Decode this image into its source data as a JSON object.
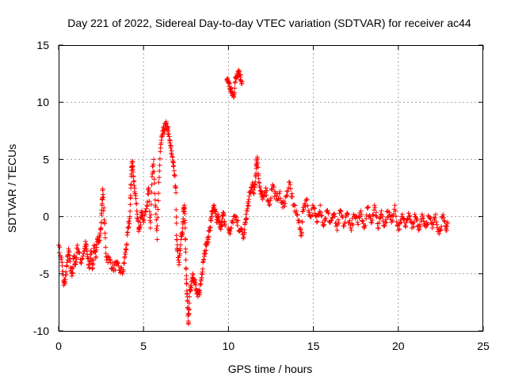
{
  "chart_data": {
    "type": "scatter",
    "title": "Day 221 of 2022, Sidereal Day-to-day VTEC variation (SDTVAR) for receiver ac44",
    "xlabel": "GPS time / hours",
    "ylabel": "SDTVAR / TECUs",
    "xlim": [
      0,
      25
    ],
    "ylim": [
      -10,
      15
    ],
    "xticks": [
      0,
      5,
      10,
      15,
      20,
      25
    ],
    "yticks": [
      -10,
      -5,
      0,
      5,
      10,
      15
    ],
    "xtick_labels": [
      "0",
      "5",
      "10",
      "15",
      "20",
      "25"
    ],
    "ytick_labels": [
      "-10",
      "-5",
      "0",
      "5",
      "10",
      "15"
    ],
    "grid": true,
    "marker": "+",
    "series": [
      {
        "name": "SDTVAR",
        "color": "#ff0000",
        "outline": [
          [
            0.0,
            -2.5
          ],
          [
            0.2,
            -4.0
          ],
          [
            0.3,
            -6.0
          ],
          [
            0.4,
            -5.5
          ],
          [
            0.5,
            -4.0
          ],
          [
            0.6,
            -3.0
          ],
          [
            0.7,
            -4.5
          ],
          [
            0.8,
            -5.0
          ],
          [
            0.9,
            -3.5
          ],
          [
            1.0,
            -4.2
          ],
          [
            1.1,
            -2.5
          ],
          [
            1.3,
            -4.0
          ],
          [
            1.5,
            -3.0
          ],
          [
            1.6,
            -2.4
          ],
          [
            1.7,
            -3.5
          ],
          [
            1.8,
            -4.5
          ],
          [
            1.9,
            -3.0
          ],
          [
            2.0,
            -4.5
          ],
          [
            2.1,
            -2.5
          ],
          [
            2.2,
            -3.5
          ],
          [
            2.3,
            -2.0
          ],
          [
            2.4,
            -1.8
          ],
          [
            2.5,
            -1.0
          ],
          [
            2.55,
            1.0
          ],
          [
            2.6,
            2.3
          ],
          [
            2.7,
            -0.5
          ],
          [
            2.8,
            -3.5
          ],
          [
            3.0,
            -3.8
          ],
          [
            3.2,
            -4.5
          ],
          [
            3.4,
            -4.2
          ],
          [
            3.6,
            -4.7
          ],
          [
            3.8,
            -4.8
          ],
          [
            3.9,
            -3.5
          ],
          [
            4.0,
            -2.5
          ],
          [
            4.1,
            -1.0
          ],
          [
            4.2,
            0.0
          ],
          [
            4.25,
            2.5
          ],
          [
            4.3,
            4.3
          ],
          [
            4.35,
            4.8
          ],
          [
            4.4,
            3.5
          ],
          [
            4.5,
            2.0
          ],
          [
            4.6,
            0.5
          ],
          [
            4.7,
            -1.0
          ],
          [
            4.8,
            -0.5
          ],
          [
            4.9,
            0.5
          ],
          [
            5.0,
            -0.5
          ],
          [
            5.2,
            1.0
          ],
          [
            5.3,
            2.5
          ],
          [
            5.4,
            -1.0
          ],
          [
            5.5,
            3.5
          ],
          [
            5.6,
            5.0
          ],
          [
            5.7,
            1.0
          ],
          [
            5.8,
            -2.0
          ],
          [
            5.9,
            3.0
          ],
          [
            6.0,
            6.0
          ],
          [
            6.1,
            7.0
          ],
          [
            6.2,
            7.6
          ],
          [
            6.3,
            8.0
          ],
          [
            6.4,
            7.8
          ],
          [
            6.5,
            7.0
          ],
          [
            6.6,
            6.0
          ],
          [
            6.7,
            5.2
          ],
          [
            6.8,
            4.0
          ],
          [
            6.9,
            2.5
          ],
          [
            6.95,
            -2.0
          ],
          [
            7.0,
            -3.0
          ],
          [
            7.1,
            -4.0
          ],
          [
            7.2,
            -2.0
          ],
          [
            7.3,
            -1.5
          ],
          [
            7.35,
            0.5
          ],
          [
            7.4,
            1.0
          ],
          [
            7.45,
            -1.0
          ],
          [
            7.5,
            -4.5
          ],
          [
            7.55,
            -6.5
          ],
          [
            7.6,
            -8.0
          ],
          [
            7.65,
            -9.3
          ],
          [
            7.7,
            -7.0
          ],
          [
            7.8,
            -6.0
          ],
          [
            7.9,
            -5.0
          ],
          [
            8.0,
            -5.5
          ],
          [
            8.1,
            -6.5
          ],
          [
            8.2,
            -7.0
          ],
          [
            8.3,
            -6.5
          ],
          [
            8.4,
            -5.5
          ],
          [
            8.5,
            -4.0
          ],
          [
            8.6,
            -3.0
          ],
          [
            8.7,
            -2.5
          ],
          [
            8.8,
            -2.0
          ],
          [
            8.9,
            -1.0
          ],
          [
            9.0,
            0.0
          ],
          [
            9.1,
            0.8
          ],
          [
            9.2,
            0.5
          ],
          [
            9.3,
            -0.5
          ],
          [
            9.4,
            0.0
          ],
          [
            9.5,
            -1.0
          ],
          [
            9.6,
            -0.5
          ],
          [
            9.7,
            0.2
          ],
          [
            9.8,
            -0.8
          ],
          [
            9.9,
            12.0
          ],
          [
            10.0,
            11.8
          ],
          [
            10.1,
            11.2
          ],
          [
            10.2,
            10.8
          ],
          [
            10.3,
            10.5
          ],
          [
            10.4,
            11.8
          ],
          [
            10.5,
            12.5
          ],
          [
            10.6,
            12.8
          ],
          [
            10.7,
            12.2
          ],
          [
            10.8,
            11.8
          ],
          [
            10.0,
            -1.0
          ],
          [
            10.1,
            -1.5
          ],
          [
            10.3,
            0.0
          ],
          [
            10.5,
            -0.5
          ],
          [
            10.7,
            -1.2
          ],
          [
            10.9,
            -1.8
          ],
          [
            11.0,
            -0.5
          ],
          [
            11.1,
            0.5
          ],
          [
            11.2,
            1.5
          ],
          [
            11.3,
            2.2
          ],
          [
            11.4,
            2.8
          ],
          [
            11.5,
            2.0
          ],
          [
            11.6,
            3.5
          ],
          [
            11.65,
            4.5
          ],
          [
            11.7,
            5.2
          ],
          [
            11.8,
            3.0
          ],
          [
            11.9,
            2.0
          ],
          [
            12.0,
            1.5
          ],
          [
            12.2,
            2.5
          ],
          [
            12.4,
            1.0
          ],
          [
            12.6,
            2.8
          ],
          [
            12.8,
            1.5
          ],
          [
            13.0,
            2.0
          ],
          [
            13.2,
            0.8
          ],
          [
            13.4,
            1.8
          ],
          [
            13.6,
            3.0
          ],
          [
            13.8,
            1.0
          ],
          [
            14.0,
            0.5
          ],
          [
            14.2,
            -1.0
          ],
          [
            14.3,
            -1.5
          ],
          [
            14.4,
            0.8
          ],
          [
            14.6,
            1.5
          ],
          [
            14.8,
            0.0
          ],
          [
            15.0,
            0.8
          ],
          [
            15.2,
            -0.5
          ],
          [
            15.4,
            1.0
          ],
          [
            15.6,
            -0.8
          ],
          [
            15.8,
            0.5
          ],
          [
            16.0,
            -0.5
          ],
          [
            16.2,
            0.2
          ],
          [
            16.4,
            -1.2
          ],
          [
            16.6,
            0.5
          ],
          [
            16.8,
            -0.8
          ],
          [
            17.0,
            0.3
          ],
          [
            17.2,
            -1.0
          ],
          [
            17.4,
            0.0
          ],
          [
            17.6,
            -0.5
          ],
          [
            17.8,
            0.5
          ],
          [
            18.0,
            -1.0
          ],
          [
            18.2,
            0.8
          ],
          [
            18.4,
            -0.5
          ],
          [
            18.6,
            1.0
          ],
          [
            18.8,
            -1.0
          ],
          [
            19.0,
            0.5
          ],
          [
            19.2,
            -0.8
          ],
          [
            19.4,
            0.5
          ],
          [
            19.6,
            -0.5
          ],
          [
            19.8,
            1.0
          ],
          [
            20.0,
            -1.2
          ],
          [
            20.2,
            0.0
          ],
          [
            20.4,
            -0.8
          ],
          [
            20.6,
            0.3
          ],
          [
            20.8,
            -1.0
          ],
          [
            21.0,
            0.0
          ],
          [
            21.2,
            -1.2
          ],
          [
            21.4,
            0.2
          ],
          [
            21.6,
            -0.8
          ],
          [
            21.8,
            0.0
          ],
          [
            22.0,
            -1.0
          ],
          [
            22.2,
            0.2
          ],
          [
            22.4,
            -1.5
          ],
          [
            22.6,
            0.0
          ],
          [
            22.8,
            -1.2
          ],
          [
            22.9,
            -0.5
          ]
        ]
      }
    ]
  }
}
